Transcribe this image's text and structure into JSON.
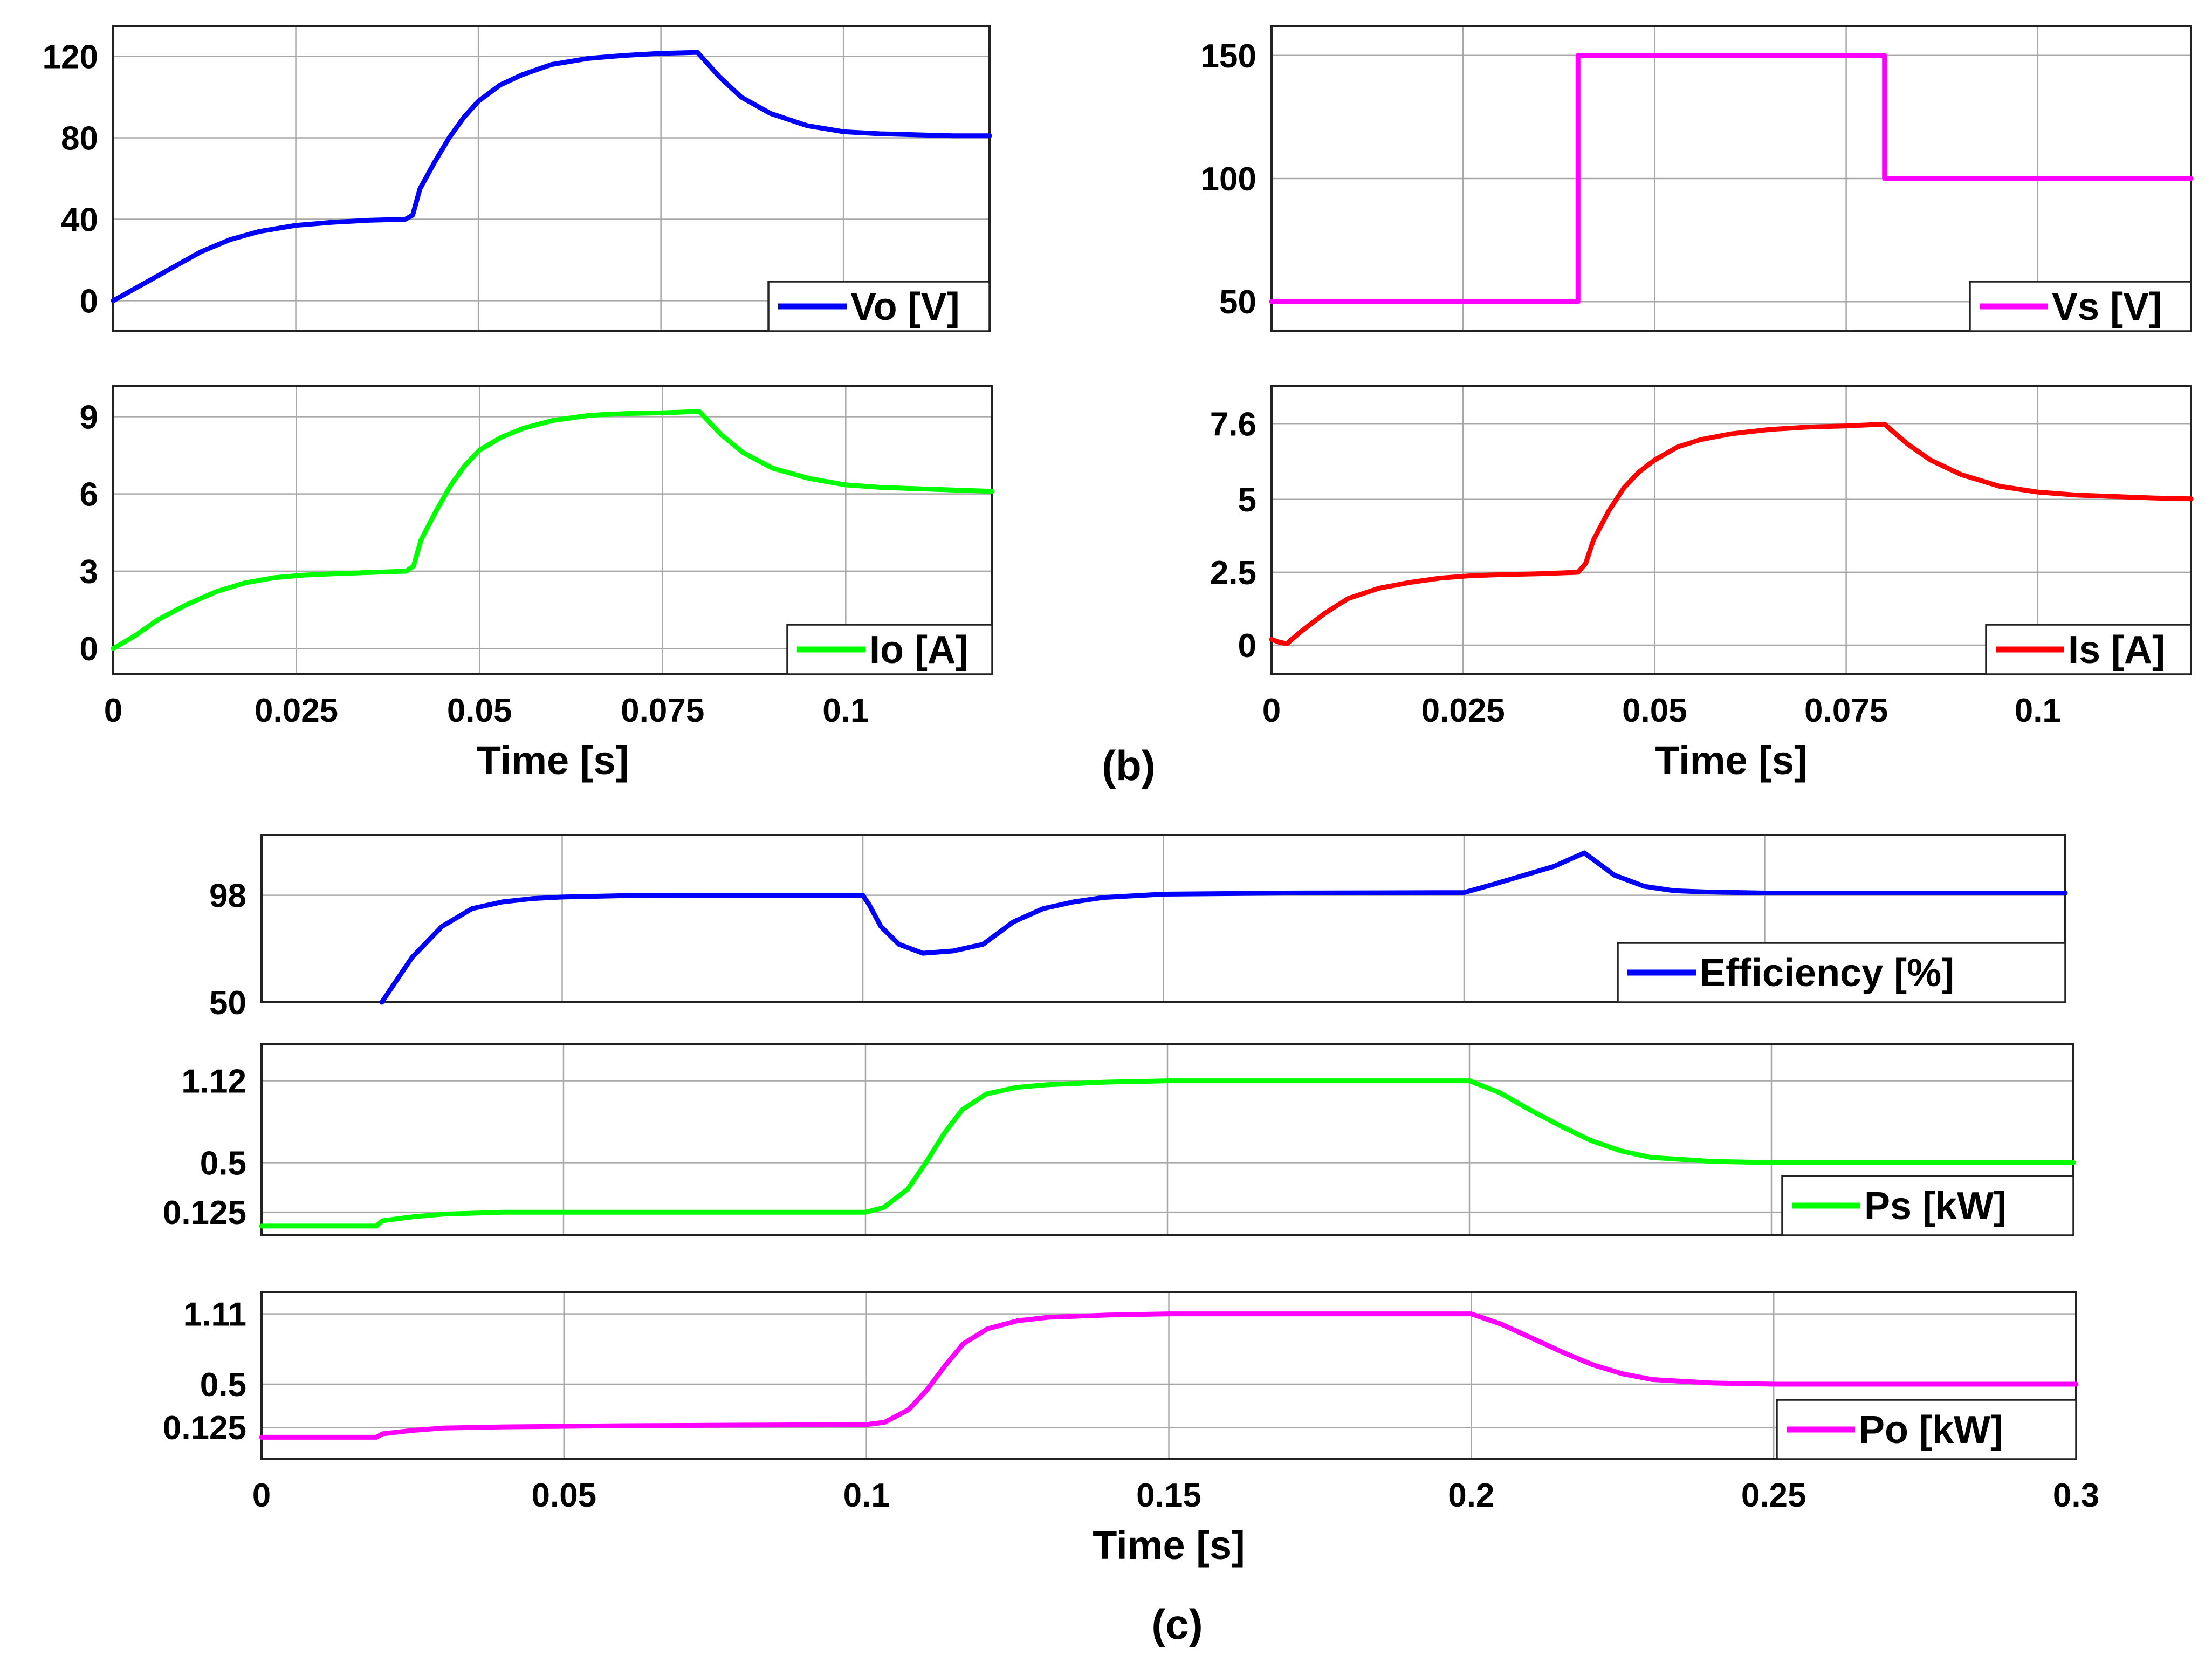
{
  "captions": {
    "b": "(b)",
    "c": "(c)"
  },
  "chart_data": [
    {
      "id": "vo",
      "type": "line",
      "title": "",
      "xlabel": "",
      "ylabel": "",
      "xlim": [
        0,
        0.12
      ],
      "ylim": [
        -15,
        135
      ],
      "grid": true,
      "xticks": [
        0,
        0.025,
        0.05,
        0.075,
        0.1
      ],
      "xtick_labels": [
        "",
        "",
        "",
        "",
        ""
      ],
      "yticks": [
        0,
        40,
        80,
        120
      ],
      "ytick_labels": [
        "0",
        "40",
        "80",
        "120"
      ],
      "legend_position": "bottom-right",
      "series": [
        {
          "name": "Vo [V]",
          "color": "#0000ff",
          "x": [
            0,
            0.002,
            0.005,
            0.008,
            0.012,
            0.016,
            0.02,
            0.025,
            0.03,
            0.035,
            0.04,
            0.041,
            0.042,
            0.044,
            0.046,
            0.048,
            0.05,
            0.053,
            0.056,
            0.06,
            0.065,
            0.07,
            0.075,
            0.08,
            0.081,
            0.083,
            0.086,
            0.09,
            0.095,
            0.1,
            0.105,
            0.11,
            0.115,
            0.12
          ],
          "y": [
            0,
            4,
            10,
            16,
            24,
            30,
            34,
            37,
            38.5,
            39.5,
            40,
            42,
            55,
            68,
            80,
            90,
            98,
            106,
            111,
            116,
            119,
            120.5,
            121.5,
            122,
            118,
            110,
            100,
            92,
            86,
            83,
            82,
            81.5,
            81,
            81
          ]
        }
      ]
    },
    {
      "id": "vs",
      "type": "line",
      "title": "",
      "xlabel": "",
      "ylabel": "",
      "xlim": [
        0,
        0.12
      ],
      "ylim": [
        38,
        162
      ],
      "grid": true,
      "xticks": [
        0,
        0.025,
        0.05,
        0.075,
        0.1
      ],
      "xtick_labels": [
        "",
        "",
        "",
        "",
        ""
      ],
      "yticks": [
        50,
        100,
        150
      ],
      "ytick_labels": [
        "50",
        "100",
        "150"
      ],
      "legend_position": "bottom-right",
      "series": [
        {
          "name": "Vs [V]",
          "color": "#ff00ff",
          "x": [
            0,
            0.04,
            0.04,
            0.08,
            0.08,
            0.12
          ],
          "y": [
            50,
            50,
            150,
            150,
            100,
            100
          ]
        }
      ]
    },
    {
      "id": "io",
      "type": "line",
      "title": "",
      "ylabel": "",
      "xlabel": "Time [s]",
      "xlim": [
        0,
        0.12
      ],
      "ylim": [
        -1,
        10.2
      ],
      "grid": true,
      "xticks": [
        0,
        0.025,
        0.05,
        0.075,
        0.1
      ],
      "xtick_labels": [
        "0",
        "0.025",
        "0.05",
        "0.075",
        "0.1"
      ],
      "yticks": [
        0,
        3,
        6,
        9
      ],
      "ytick_labels": [
        "0",
        "3",
        "6",
        "9"
      ],
      "legend_position": "bottom-right",
      "series": [
        {
          "name": "Io [A]",
          "color": "#00ff00",
          "x": [
            0,
            0.003,
            0.006,
            0.01,
            0.014,
            0.018,
            0.022,
            0.026,
            0.03,
            0.035,
            0.04,
            0.041,
            0.042,
            0.044,
            0.046,
            0.048,
            0.05,
            0.053,
            0.056,
            0.06,
            0.065,
            0.07,
            0.075,
            0.08,
            0.081,
            0.083,
            0.086,
            0.09,
            0.095,
            0.1,
            0.105,
            0.11,
            0.115,
            0.12
          ],
          "y": [
            0,
            0.5,
            1.1,
            1.7,
            2.2,
            2.55,
            2.75,
            2.85,
            2.9,
            2.95,
            3,
            3.2,
            4.2,
            5.3,
            6.3,
            7.1,
            7.7,
            8.2,
            8.55,
            8.85,
            9.05,
            9.12,
            9.15,
            9.2,
            8.9,
            8.3,
            7.6,
            7,
            6.6,
            6.35,
            6.25,
            6.2,
            6.15,
            6.1
          ]
        }
      ]
    },
    {
      "id": "is",
      "type": "line",
      "title": "",
      "ylabel": "",
      "xlabel": "Time [s]",
      "xlim": [
        0,
        0.12
      ],
      "ylim": [
        -1,
        8.9
      ],
      "grid": true,
      "xticks": [
        0,
        0.025,
        0.05,
        0.075,
        0.1
      ],
      "xtick_labels": [
        "0",
        "0.025",
        "0.05",
        "0.075",
        "0.1"
      ],
      "yticks": [
        0,
        2.5,
        5,
        7.6
      ],
      "ytick_labels": [
        "0",
        "2.5",
        "5",
        "7.6"
      ],
      "legend_position": "bottom-right",
      "series": [
        {
          "name": "Is [A]",
          "color": "#ff0000",
          "x": [
            0,
            0.001,
            0.002,
            0.004,
            0.007,
            0.01,
            0.014,
            0.018,
            0.022,
            0.026,
            0.03,
            0.035,
            0.04,
            0.041,
            0.042,
            0.044,
            0.046,
            0.048,
            0.05,
            0.053,
            0.056,
            0.06,
            0.065,
            0.07,
            0.075,
            0.08,
            0.081,
            0.083,
            0.086,
            0.09,
            0.095,
            0.1,
            0.105,
            0.11,
            0.115,
            0.12
          ],
          "y": [
            0.2,
            0.1,
            0.05,
            0.5,
            1.1,
            1.6,
            1.95,
            2.15,
            2.3,
            2.38,
            2.42,
            2.45,
            2.5,
            2.8,
            3.6,
            4.6,
            5.4,
            5.95,
            6.35,
            6.8,
            7.05,
            7.25,
            7.4,
            7.48,
            7.52,
            7.58,
            7.35,
            6.9,
            6.35,
            5.85,
            5.45,
            5.25,
            5.15,
            5.1,
            5.05,
            5.02
          ]
        }
      ]
    },
    {
      "id": "efficiency",
      "type": "line",
      "title": "",
      "xlabel": "",
      "ylabel": "",
      "xlim": [
        0,
        0.3
      ],
      "ylim": [
        50,
        125
      ],
      "grid": true,
      "xticks": [
        0,
        0.05,
        0.1,
        0.15,
        0.2,
        0.25,
        0.3
      ],
      "xtick_labels": [
        "",
        "",
        "",
        "",
        "",
        "",
        ""
      ],
      "yticks": [
        50,
        98
      ],
      "ytick_labels": [
        "50",
        "98"
      ],
      "legend_position": "bottom-right",
      "series": [
        {
          "name": "Efficiency [%]",
          "color": "#0000ff",
          "x": [
            0.02,
            0.025,
            0.03,
            0.035,
            0.04,
            0.045,
            0.05,
            0.06,
            0.08,
            0.1,
            0.101,
            0.103,
            0.106,
            0.11,
            0.115,
            0.12,
            0.125,
            0.13,
            0.135,
            0.14,
            0.15,
            0.17,
            0.2,
            0.205,
            0.21,
            0.215,
            0.22,
            0.222,
            0.225,
            0.23,
            0.235,
            0.24,
            0.25,
            0.3
          ],
          "y": [
            50,
            70,
            84,
            92,
            95,
            96.5,
            97.2,
            97.8,
            98,
            98,
            94,
            84,
            76,
            72,
            73,
            76,
            86,
            92,
            95,
            97,
            98.5,
            99,
            99.2,
            103,
            107,
            111,
            117,
            113,
            107,
            102,
            100,
            99.5,
            99,
            99
          ]
        }
      ]
    },
    {
      "id": "ps",
      "type": "line",
      "title": "",
      "xlabel": "",
      "ylabel": "",
      "xlim": [
        0,
        0.3
      ],
      "ylim": [
        -0.05,
        1.4
      ],
      "grid": true,
      "xticks": [
        0,
        0.05,
        0.1,
        0.15,
        0.2,
        0.25,
        0.3
      ],
      "xtick_labels": [
        "",
        "",
        "",
        "",
        "",
        "",
        ""
      ],
      "yticks": [
        0.125,
        0.5,
        1.12
      ],
      "ytick_labels": [
        "0.125",
        "0.5",
        "1.12"
      ],
      "legend_position": "bottom-right",
      "series": [
        {
          "name": "Ps [kW]",
          "color": "#00ff00",
          "x": [
            0,
            0.019,
            0.02,
            0.025,
            0.03,
            0.04,
            0.06,
            0.08,
            0.1,
            0.103,
            0.107,
            0.11,
            0.113,
            0.116,
            0.12,
            0.125,
            0.13,
            0.14,
            0.15,
            0.2,
            0.205,
            0.21,
            0.215,
            0.22,
            0.225,
            0.23,
            0.24,
            0.25,
            0.3
          ],
          "y": [
            0.02,
            0.02,
            0.06,
            0.09,
            0.11,
            0.125,
            0.125,
            0.125,
            0.125,
            0.16,
            0.3,
            0.5,
            0.72,
            0.9,
            1.02,
            1.07,
            1.09,
            1.11,
            1.12,
            1.12,
            1.03,
            0.9,
            0.78,
            0.67,
            0.59,
            0.54,
            0.51,
            0.5,
            0.5
          ]
        }
      ]
    },
    {
      "id": "po",
      "type": "line",
      "title": "",
      "xlabel": "Time [s]",
      "ylabel": "",
      "xlim": [
        0,
        0.3
      ],
      "ylim": [
        -0.15,
        1.3
      ],
      "grid": true,
      "xticks": [
        0,
        0.05,
        0.1,
        0.15,
        0.2,
        0.25,
        0.3
      ],
      "xtick_labels": [
        "0",
        "0.05",
        "0.1",
        "0.15",
        "0.2",
        "0.25",
        "0.3"
      ],
      "yticks": [
        0.125,
        0.5,
        1.11
      ],
      "ytick_labels": [
        "0.125",
        "0.5",
        "1.11"
      ],
      "legend_position": "bottom-right",
      "series": [
        {
          "name": "Po [kW]",
          "color": "#ff00ff",
          "x": [
            0,
            0.019,
            0.02,
            0.025,
            0.03,
            0.04,
            0.06,
            0.08,
            0.1,
            0.103,
            0.107,
            0.11,
            0.113,
            0.116,
            0.12,
            0.125,
            0.13,
            0.14,
            0.15,
            0.2,
            0.205,
            0.21,
            0.215,
            0.22,
            0.225,
            0.23,
            0.24,
            0.25,
            0.3
          ],
          "y": [
            0.04,
            0.04,
            0.07,
            0.1,
            0.12,
            0.13,
            0.14,
            0.145,
            0.15,
            0.17,
            0.28,
            0.45,
            0.66,
            0.85,
            0.98,
            1.05,
            1.08,
            1.1,
            1.11,
            1.11,
            1.02,
            0.9,
            0.78,
            0.67,
            0.59,
            0.54,
            0.51,
            0.5,
            0.5
          ]
        }
      ]
    }
  ]
}
